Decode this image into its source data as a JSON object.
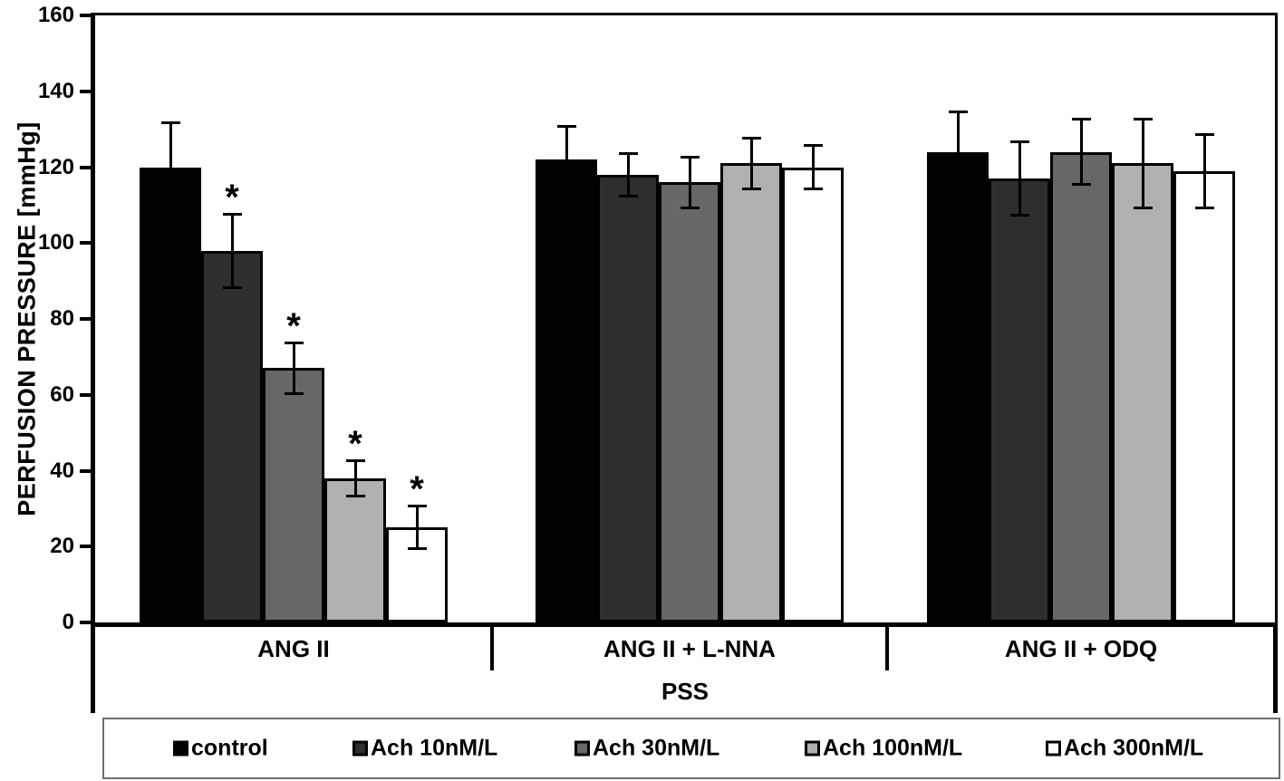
{
  "chart_data": {
    "type": "bar",
    "title": "",
    "ylabel": "PERFUSION PRESSURE [mmHg]",
    "xlabel": "PSS",
    "ylim": [
      0,
      160
    ],
    "ytick_step": 20,
    "grid": false,
    "legend_position": "bottom",
    "significance_symbol": "*",
    "categories": [
      "ANG II",
      "ANG II + L-NNA",
      "ANG II + ODQ"
    ],
    "series": [
      {
        "name": "control",
        "color": "#000000",
        "values": [
          120,
          122,
          124
        ],
        "errors": [
          12,
          9,
          11
        ],
        "significant": [
          false,
          false,
          false
        ]
      },
      {
        "name": "Ach 10nM/L",
        "color": "#2e2e2e",
        "values": [
          98,
          118,
          117
        ],
        "errors": [
          10,
          6,
          10
        ],
        "significant": [
          true,
          false,
          false
        ]
      },
      {
        "name": "Ach 30nM/L",
        "color": "#676767",
        "values": [
          67,
          116,
          124
        ],
        "errors": [
          7,
          7,
          9
        ],
        "significant": [
          true,
          false,
          false
        ]
      },
      {
        "name": "Ach 100nM/L",
        "color": "#b0b0b0",
        "values": [
          38,
          121,
          121
        ],
        "errors": [
          5,
          7,
          12
        ],
        "significant": [
          true,
          false,
          false
        ]
      },
      {
        "name": "Ach 300nM/L",
        "color": "#ffffff",
        "values": [
          25,
          120,
          119
        ],
        "errors": [
          6,
          6,
          10
        ],
        "significant": [
          true,
          false,
          false
        ]
      }
    ]
  }
}
